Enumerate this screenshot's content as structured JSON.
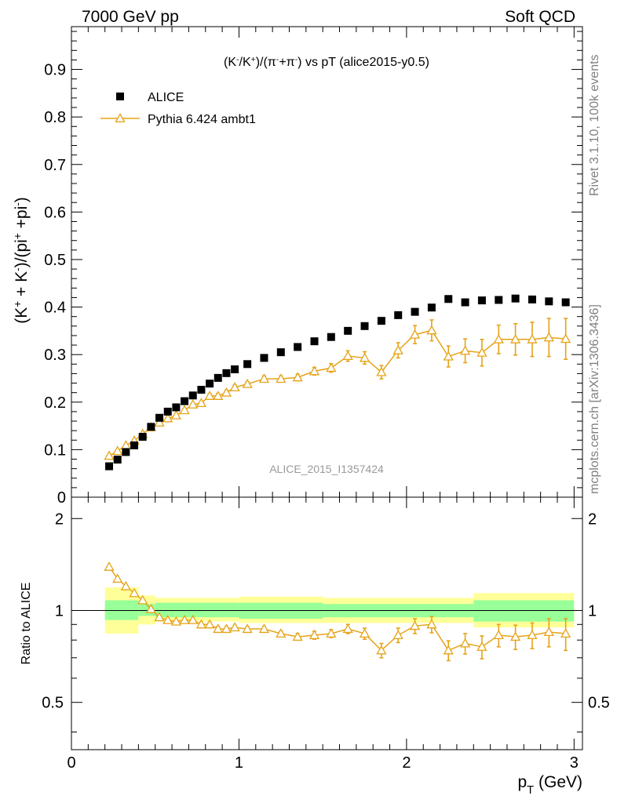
{
  "header": {
    "left": "7000 GeV pp",
    "right": "Soft QCD"
  },
  "side_labels": {
    "rivet": "Rivet 3.1.10,  100k events",
    "mcplots": "mcplots.cern.ch [arXiv:1306.3436]"
  },
  "watermark": "ALICE_2015_I1357424",
  "colors": {
    "data": "#000000",
    "mc": "#e5a317",
    "band_outer": "#ffff99",
    "band_inner": "#99ff99"
  },
  "chart_data": [
    {
      "type": "scatter",
      "panel": "main",
      "title": "(K⁻/K⁺)/(π⁻+π⁻) vs pT (alice2015-y0.5)",
      "xlabel": "p_T (GeV)",
      "ylabel": "(K⁺ + K⁻)/(pi⁺ +pi⁻)",
      "xlim": [
        0,
        3.05
      ],
      "ylim": [
        0,
        0.99
      ],
      "yticks": [
        "0",
        "0.1",
        "0.2",
        "0.3",
        "0.4",
        "0.5",
        "0.6",
        "0.7",
        "0.8",
        "0.9"
      ],
      "xticks": [
        "0",
        "1",
        "2",
        "3"
      ],
      "legend": [
        "ALICE",
        "Pythia 6.424 ambt1"
      ],
      "legend_position": "top-left",
      "series": [
        {
          "name": "ALICE",
          "x": [
            0.225,
            0.275,
            0.325,
            0.375,
            0.425,
            0.475,
            0.525,
            0.575,
            0.625,
            0.675,
            0.725,
            0.775,
            0.825,
            0.875,
            0.925,
            0.975,
            1.05,
            1.15,
            1.25,
            1.35,
            1.45,
            1.55,
            1.65,
            1.75,
            1.85,
            1.95,
            2.05,
            2.15,
            2.25,
            2.35,
            2.45,
            2.55,
            2.65,
            2.75,
            2.85,
            2.95
          ],
          "y": [
            0.065,
            0.079,
            0.095,
            0.109,
            0.127,
            0.148,
            0.167,
            0.18,
            0.189,
            0.202,
            0.214,
            0.226,
            0.239,
            0.251,
            0.261,
            0.269,
            0.28,
            0.293,
            0.305,
            0.316,
            0.328,
            0.337,
            0.35,
            0.36,
            0.371,
            0.383,
            0.39,
            0.399,
            0.417,
            0.41,
            0.414,
            0.415,
            0.418,
            0.416,
            0.412,
            0.41
          ]
        },
        {
          "name": "Pythia 6.424 ambt1",
          "x": [
            0.225,
            0.275,
            0.325,
            0.375,
            0.425,
            0.475,
            0.525,
            0.575,
            0.625,
            0.675,
            0.725,
            0.775,
            0.825,
            0.875,
            0.925,
            0.975,
            1.05,
            1.15,
            1.25,
            1.35,
            1.45,
            1.55,
            1.65,
            1.75,
            1.85,
            1.95,
            2.05,
            2.15,
            2.25,
            2.35,
            2.45,
            2.55,
            2.65,
            2.75,
            2.85,
            2.95
          ],
          "y": [
            0.087,
            0.097,
            0.109,
            0.119,
            0.133,
            0.147,
            0.157,
            0.166,
            0.172,
            0.183,
            0.195,
            0.198,
            0.213,
            0.213,
            0.22,
            0.231,
            0.238,
            0.249,
            0.249,
            0.252,
            0.265,
            0.272,
            0.297,
            0.293,
            0.263,
            0.309,
            0.342,
            0.351,
            0.296,
            0.308,
            0.304,
            0.332,
            0.332,
            0.332,
            0.336,
            0.333
          ],
          "yerr": [
            0.003,
            0.003,
            0.003,
            0.003,
            0.003,
            0.003,
            0.004,
            0.004,
            0.004,
            0.004,
            0.004,
            0.004,
            0.005,
            0.005,
            0.005,
            0.005,
            0.005,
            0.006,
            0.006,
            0.007,
            0.008,
            0.009,
            0.011,
            0.013,
            0.014,
            0.016,
            0.019,
            0.022,
            0.022,
            0.025,
            0.028,
            0.03,
            0.033,
            0.036,
            0.04,
            0.043
          ]
        }
      ]
    },
    {
      "type": "line",
      "panel": "ratio",
      "ylabel": "Ratio to ALICE",
      "xlabel": "p_T (GeV)",
      "xlim": [
        0,
        3.05
      ],
      "ylim": [
        0.35,
        2.35
      ],
      "log_y": true,
      "yticks": [
        "0.5",
        "1",
        "2"
      ],
      "xticks": [
        "0",
        "1",
        "2",
        "3"
      ],
      "reference_line": 1,
      "band_edges": [
        0.2,
        0.4,
        0.5,
        0.75,
        1.0,
        1.5,
        2.4,
        3.0
      ],
      "outer_band": [
        [
          0.84,
          1.19
        ],
        [
          0.9,
          1.12
        ],
        [
          0.92,
          1.1
        ],
        [
          0.92,
          1.1
        ],
        [
          0.91,
          1.11
        ],
        [
          0.91,
          1.1
        ],
        [
          0.88,
          1.14
        ]
      ],
      "inner_band": [
        [
          0.93,
          1.08
        ],
        [
          0.96,
          1.05
        ],
        [
          0.95,
          1.06
        ],
        [
          0.95,
          1.06
        ],
        [
          0.94,
          1.06
        ],
        [
          0.95,
          1.05
        ],
        [
          0.92,
          1.08
        ]
      ],
      "series": [
        {
          "name": "Pythia 6.424 ambt1",
          "x": [
            0.225,
            0.275,
            0.325,
            0.375,
            0.425,
            0.475,
            0.525,
            0.575,
            0.625,
            0.675,
            0.725,
            0.775,
            0.825,
            0.875,
            0.925,
            0.975,
            1.05,
            1.15,
            1.25,
            1.35,
            1.45,
            1.55,
            1.65,
            1.75,
            1.85,
            1.95,
            2.05,
            2.15,
            2.25,
            2.35,
            2.45,
            2.55,
            2.65,
            2.75,
            2.85,
            2.95
          ],
          "y": [
            1.39,
            1.27,
            1.2,
            1.14,
            1.08,
            1.01,
            0.95,
            0.93,
            0.92,
            0.93,
            0.93,
            0.9,
            0.9,
            0.87,
            0.87,
            0.88,
            0.87,
            0.87,
            0.84,
            0.82,
            0.83,
            0.84,
            0.87,
            0.84,
            0.74,
            0.83,
            0.89,
            0.9,
            0.74,
            0.78,
            0.76,
            0.83,
            0.82,
            0.83,
            0.85,
            0.84
          ],
          "yerr": [
            0.012,
            0.012,
            0.012,
            0.012,
            0.012,
            0.012,
            0.012,
            0.012,
            0.012,
            0.012,
            0.012,
            0.015,
            0.015,
            0.015,
            0.015,
            0.015,
            0.015,
            0.015,
            0.015,
            0.02,
            0.025,
            0.025,
            0.03,
            0.035,
            0.04,
            0.045,
            0.05,
            0.055,
            0.055,
            0.06,
            0.065,
            0.07,
            0.075,
            0.08,
            0.09,
            0.1
          ]
        }
      ]
    }
  ]
}
